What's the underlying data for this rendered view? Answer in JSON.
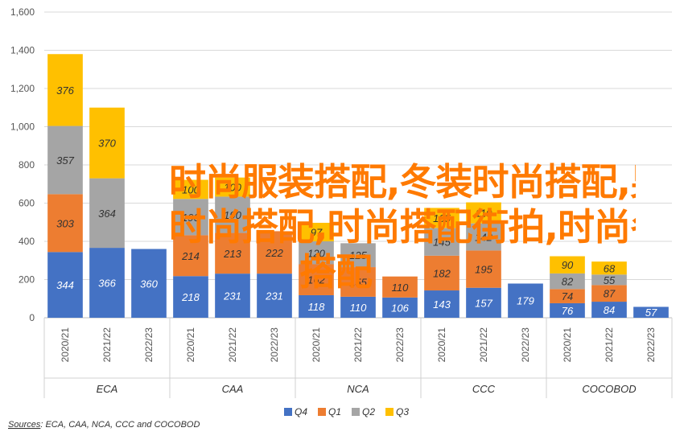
{
  "chart_data": {
    "type": "bar",
    "stacked": true,
    "groups": [
      {
        "name": "ECA",
        "categories": [
          "2020/21",
          "2021/22",
          "2022/23"
        ]
      },
      {
        "name": "CAA",
        "categories": [
          "2020/21",
          "2021/22",
          "2022/23"
        ]
      },
      {
        "name": "NCA",
        "categories": [
          "2020/21",
          "2021/22",
          "2022/23"
        ]
      },
      {
        "name": "CCC",
        "categories": [
          "2020/21",
          "2021/22",
          "2022/23"
        ]
      },
      {
        "name": "COCOBOD",
        "categories": [
          "2020/21",
          "2021/22",
          "2022/23"
        ]
      }
    ],
    "series": [
      {
        "name": "Q4",
        "color": "#4472c4",
        "values": [
          344,
          366,
          360,
          218,
          231,
          231,
          118,
          110,
          106,
          143,
          157,
          179,
          76,
          84,
          57
        ]
      },
      {
        "name": "Q1",
        "color": "#ed7d31",
        "values": [
          303,
          0,
          0,
          214,
          213,
          222,
          162,
          155,
          110,
          182,
          195,
          0,
          74,
          87,
          0
        ]
      },
      {
        "name": "Q2",
        "color": "#a5a5a5",
        "values": [
          357,
          364,
          0,
          190,
          190,
          0,
          120,
          125,
          0,
          145,
          142,
          0,
          82,
          55,
          0
        ]
      },
      {
        "name": "Q3",
        "color": "#ffc000",
        "values": [
          376,
          370,
          0,
          100,
          100,
          0,
          97,
          0,
          0,
          105,
          110,
          0,
          90,
          68,
          0
        ]
      }
    ],
    "ylim": [
      0,
      1600
    ],
    "yticks": [
      "0",
      "200",
      "400",
      "600",
      "800",
      "1,000",
      "1,200",
      "1,400",
      "1,600"
    ],
    "grid": true,
    "legend_position": "bottom",
    "source_label": "Sources",
    "source_text": ": ECA, CAA, NCA, CCC and COCOBOD"
  },
  "overlay": {
    "line1": "时尚服装搭配,冬装时尚搭配,男士",
    "line2": "时尚搭配,时尚搭配街拍,时尚冬装",
    "line3": "搭配"
  }
}
